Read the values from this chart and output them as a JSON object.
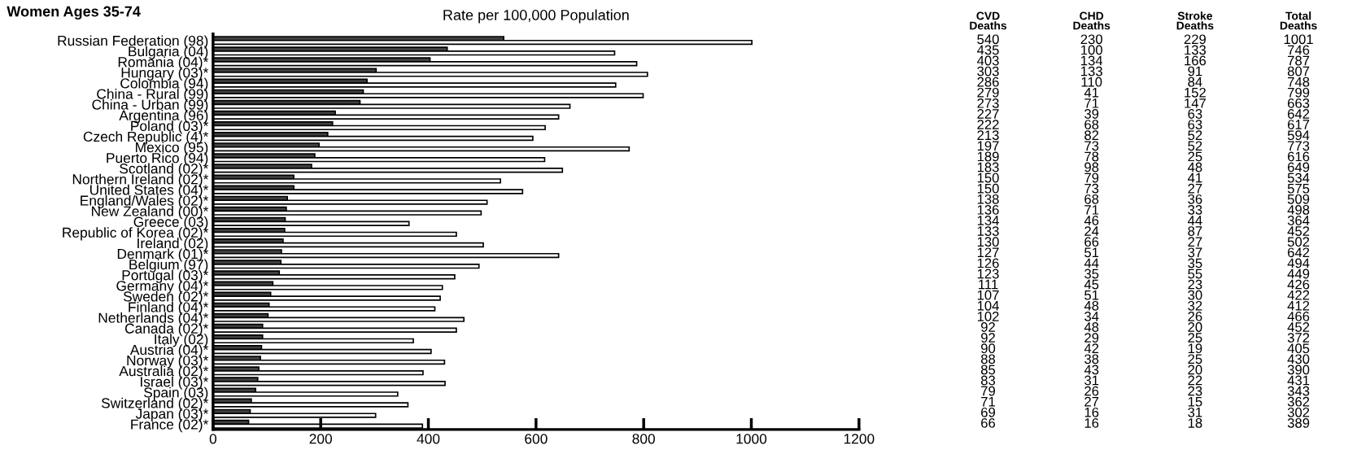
{
  "chart_data": [
    {
      "type": "bar",
      "orientation": "horizontal",
      "title": "Women Ages 35-74",
      "subtitle": "Rate per 100,000 Population",
      "categories": [
        "Russian Federation (98)",
        "Bulgaria (04)",
        "Romania (04)*",
        "Hungary (03)*",
        "Colombia (94)",
        "China - Rural (99)",
        "China - Urban (99)",
        "Argentina (96)",
        "Poland (03)*",
        "Czech Republic (4)*",
        "Mexico (95)",
        "Puerto Rico (94)",
        "Scotland (02)*",
        "Northern Ireland (02)*",
        "United States (04)*",
        "England/Wales (02)*",
        "New Zealand (00)*",
        "Greece (03)",
        "Republic of Korea (02)*",
        "Ireland (02)",
        "Denmark (01)*",
        "Belgium (97)",
        "Portugal (03)*",
        "Germany (04)*",
        "Sweden (02)*",
        "Finland (04)*",
        "Netherlands (04)*",
        "Canada (02)*",
        "Italy (02)",
        "Austria (04)*",
        "Norway (03)*",
        "Australia (02)*",
        "Israel (03)*",
        "Spain (03)",
        "Switzerland (02)*",
        "Japan (03)*",
        "France (02)*"
      ],
      "series": [
        {
          "color": "#404040",
          "values": [
            540,
            435,
            403,
            303,
            286,
            279,
            273,
            227,
            222,
            213,
            197,
            189,
            183,
            150,
            150,
            138,
            136,
            134,
            133,
            130,
            127,
            126,
            123,
            111,
            107,
            104,
            102,
            92,
            92,
            90,
            88,
            85,
            83,
            79,
            71,
            69,
            66
          ]
        },
        {
          "color": "#ffffff",
          "values": [
            1001,
            746,
            787,
            807,
            748,
            799,
            663,
            642,
            617,
            594,
            773,
            616,
            649,
            534,
            575,
            509,
            498,
            364,
            452,
            502,
            642,
            494,
            449,
            426,
            422,
            412,
            466,
            452,
            372,
            405,
            430,
            390,
            431,
            343,
            362,
            302,
            389
          ]
        }
      ],
      "xlim": [
        0,
        1200
      ],
      "xticks": [
        0,
        200,
        400,
        600,
        800,
        1000,
        1200
      ]
    },
    {
      "type": "heatmap",
      "categories": [
        "CVD Deaths",
        "CHD Deaths",
        "Stroke Deaths",
        "Total Deaths"
      ],
      "y_categories": [
        null,
        null,
        null,
        null,
        null,
        null,
        null,
        null,
        null,
        null,
        null,
        null,
        null,
        null,
        null,
        null,
        null,
        null,
        null,
        null,
        null,
        null,
        null,
        null,
        null,
        null,
        null,
        null,
        null,
        null,
        null,
        null,
        null,
        null,
        null,
        null,
        null
      ],
      "cells": [
        [
          540,
          230,
          229,
          1001
        ],
        [
          435,
          100,
          133,
          746
        ],
        [
          403,
          134,
          166,
          787
        ],
        [
          303,
          133,
          91,
          807
        ],
        [
          286,
          110,
          84,
          748
        ],
        [
          279,
          41,
          152,
          799
        ],
        [
          273,
          71,
          147,
          663
        ],
        [
          227,
          39,
          63,
          642
        ],
        [
          222,
          68,
          63,
          617
        ],
        [
          213,
          82,
          52,
          594
        ],
        [
          197,
          73,
          52,
          773
        ],
        [
          189,
          78,
          25,
          616
        ],
        [
          183,
          98,
          48,
          649
        ],
        [
          150,
          79,
          41,
          534
        ],
        [
          150,
          73,
          27,
          575
        ],
        [
          138,
          68,
          36,
          509
        ],
        [
          136,
          71,
          33,
          498
        ],
        [
          134,
          46,
          44,
          364
        ],
        [
          133,
          24,
          87,
          452
        ],
        [
          130,
          66,
          27,
          502
        ],
        [
          127,
          51,
          37,
          642
        ],
        [
          126,
          44,
          35,
          494
        ],
        [
          123,
          35,
          55,
          449
        ],
        [
          111,
          45,
          23,
          426
        ],
        [
          107,
          51,
          30,
          422
        ],
        [
          104,
          48,
          32,
          412
        ],
        [
          102,
          34,
          26,
          466
        ],
        [
          92,
          48,
          20,
          452
        ],
        [
          92,
          29,
          25,
          372
        ],
        [
          90,
          42,
          19,
          405
        ],
        [
          88,
          38,
          25,
          430
        ],
        [
          85,
          43,
          20,
          390
        ],
        [
          83,
          31,
          22,
          431
        ],
        [
          79,
          26,
          23,
          343
        ],
        [
          71,
          27,
          15,
          362
        ],
        [
          69,
          16,
          31,
          302
        ],
        [
          66,
          16,
          18,
          389
        ]
      ],
      "data_labels": true
    }
  ]
}
